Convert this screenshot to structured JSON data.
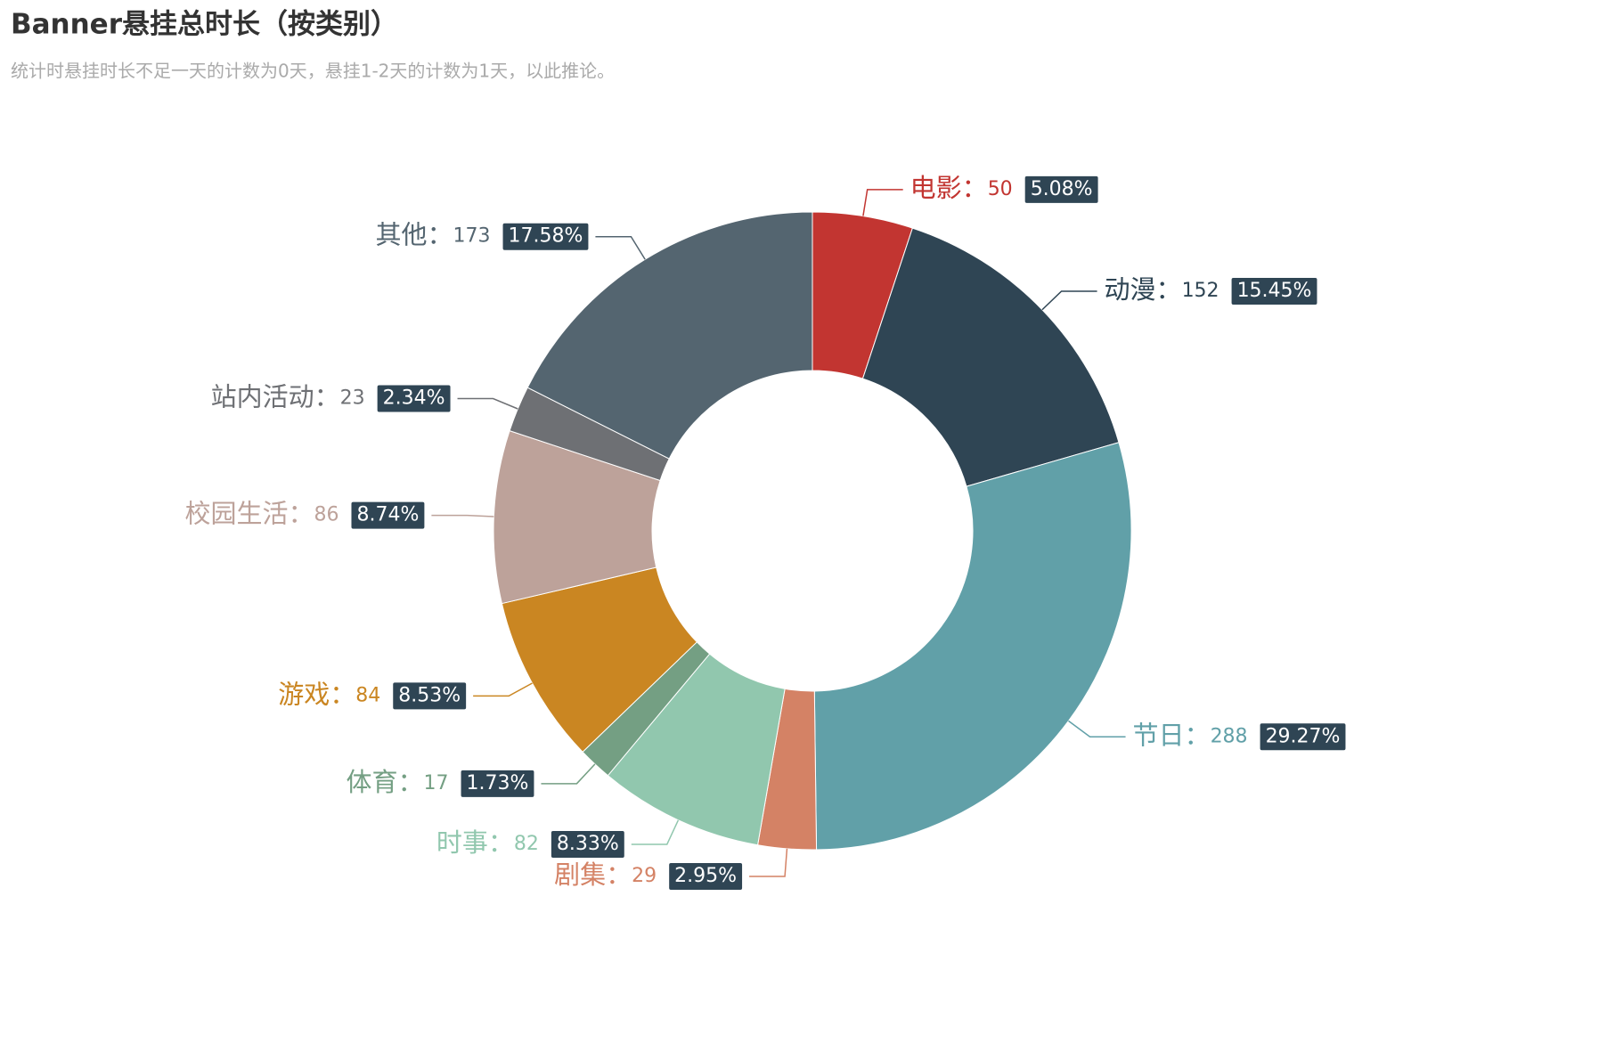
{
  "chart_data": {
    "type": "pie",
    "title": "Banner悬挂总时长（按类别）",
    "subtitle": "统计时悬挂时长不足一天的计数为0天，悬挂1-2天的计数为1天，以此推论。",
    "categories": [
      "电影：",
      "动漫：",
      "节日：",
      "剧集：",
      "时事：",
      "体育：",
      "游戏：",
      "校园生活：",
      "站内活动：",
      "其他："
    ],
    "values": [
      50,
      152,
      288,
      29,
      82,
      17,
      84,
      86,
      23,
      173
    ],
    "percent_labels": [
      "5.08%",
      "15.45%",
      "29.27%",
      "2.95%",
      "8.33%",
      "1.73%",
      "8.53%",
      "8.74%",
      "2.34%",
      "17.58%"
    ],
    "colors": [
      "#c23531",
      "#2f4554",
      "#61a0a8",
      "#d48265",
      "#91c7ae",
      "#749f83",
      "#ca8622",
      "#bda29a",
      "#6e7074",
      "#546570"
    ]
  }
}
